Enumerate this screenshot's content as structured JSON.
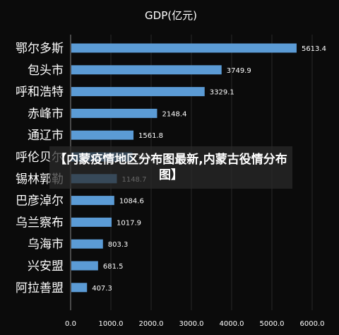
{
  "overlay": {
    "text": "【内蒙疫情地区分布图最新,内蒙古役情分布图】"
  },
  "colors": {
    "background": "#0b0b0b",
    "bar": "#5b9bd5",
    "text": "#ffffff",
    "grid": "#2a2a2a",
    "axis": "#8a8a8a"
  },
  "chart_data": {
    "type": "bar",
    "orientation": "horizontal",
    "title": "GDP(亿元)",
    "categories": [
      "鄂尔多斯",
      "包头市",
      "呼和浩特",
      "赤峰市",
      "通辽市",
      "呼伦贝尔",
      "锡林郭勒",
      "巴彦淖尔",
      "乌兰察布",
      "乌海市",
      "兴安盟",
      "阿拉善盟"
    ],
    "values": [
      5613.4,
      3749.9,
      3329.1,
      2148.4,
      1561.8,
      1535.3,
      1148.7,
      1084.6,
      1017.9,
      803.3,
      681.5,
      407.3
    ],
    "value_labels": [
      "5613.4",
      "3749.9",
      "3329.1",
      "2148.4",
      "1561.8",
      "1535.3",
      "1148.7",
      "1084.6",
      "1017.9",
      "803.3",
      "681.5",
      "407.3"
    ],
    "xlim": [
      0,
      6000
    ],
    "ticks": [
      0,
      1000,
      2000,
      3000,
      4000,
      5000,
      6000
    ],
    "tick_labels": [
      "0.0",
      "1000.0",
      "2000.0",
      "3000.0",
      "4000.0",
      "5000.0",
      "6000.0"
    ],
    "grid": true
  }
}
